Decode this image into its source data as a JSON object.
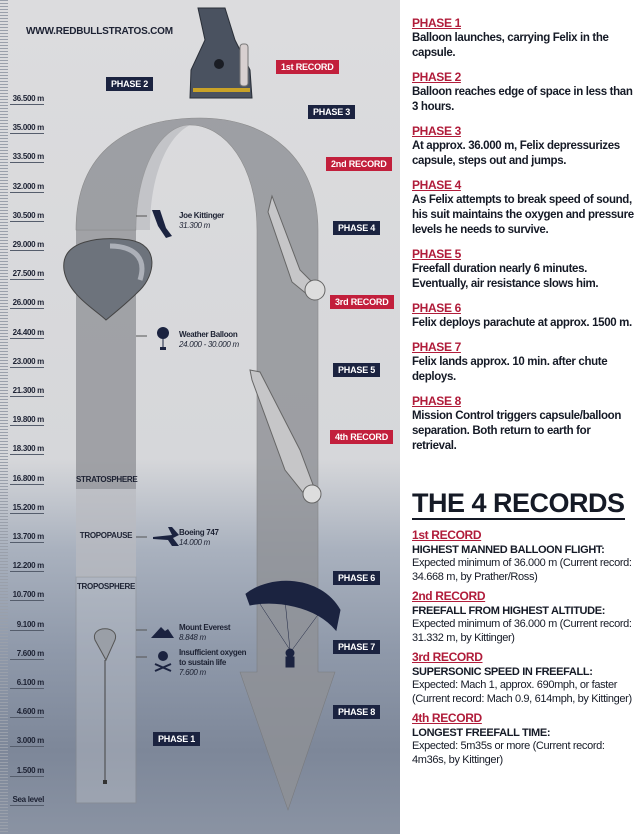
{
  "website": "WWW.REDBULLSTRATOS.COM",
  "altitudes": [
    "36.500 m",
    "35.000 m",
    "33.500 m",
    "32.000 m",
    "30.500 m",
    "29.000 m",
    "27.500 m",
    "26.000 m",
    "24.400 m",
    "23.000 m",
    "21.300 m",
    "19.800 m",
    "18.300 m",
    "16.800 m",
    "15.200 m",
    "13.700 m",
    "12.200 m",
    "10.700 m",
    "9.100 m",
    "7.600 m",
    "6.100 m",
    "4.600 m",
    "3.000 m",
    "1.500 m",
    "Sea level"
  ],
  "zones": {
    "stratosphere": "STRATOSPHERE",
    "tropopause": "TROPOPAUSE",
    "troposphere": "TROPOSPHERE"
  },
  "badges": {
    "phase1": "PHASE 1",
    "phase2": "PHASE 2",
    "phase3": "PHASE 3",
    "phase4": "PHASE 4",
    "phase5": "PHASE 5",
    "phase6": "PHASE 6",
    "phase7": "PHASE 7",
    "phase8": "PHASE 8",
    "rec1": "1st RECORD",
    "rec2": "2nd RECORD",
    "rec3": "3rd RECORD",
    "rec4": "4th RECORD"
  },
  "annotations": [
    {
      "name": "Joe Kittinger",
      "value": "31.300 m"
    },
    {
      "name": "Weather Balloon",
      "value": "24.000 - 30.000 m"
    },
    {
      "name": "Boeing 747",
      "value": "14.000 m"
    },
    {
      "name": "Mount Everest",
      "value": "8.848 m"
    },
    {
      "name": "Insufficient oxygen to sustain life",
      "value": "7.600 m"
    }
  ],
  "phases": [
    {
      "title": "PHASE 1",
      "text": "Balloon launches, carrying Felix in the capsule."
    },
    {
      "title": "PHASE 2",
      "text": "Balloon reaches edge of space in less than 3 hours."
    },
    {
      "title": "PHASE 3",
      "text": "At approx. 36.000 m, Felix depressurizes capsule, steps out and jumps."
    },
    {
      "title": "PHASE 4",
      "text": "As Felix attempts to break speed of sound, his suit maintains the oxygen and pressure levels he needs to survive."
    },
    {
      "title": "PHASE 5",
      "text": "Freefall duration nearly 6 minutes. Eventually, air resistance slows him."
    },
    {
      "title": "PHASE 6",
      "text": "Felix deploys parachute at approx. 1500 m."
    },
    {
      "title": "PHASE 7",
      "text": "Felix lands approx. 10 min. after chute deploys."
    },
    {
      "title": "PHASE 8",
      "text": "Mission Control triggers capsule/balloon separation. Both return to earth for retrieval."
    }
  ],
  "records": {
    "heading": "THE 4 RECORDS",
    "items": [
      {
        "title": "1st RECORD",
        "name": "HIGHEST MANNED BALLOON FLIGHT:",
        "text": "Expected minimum of 36.000 m (Current record: 34.668 m, by Prather/Ross)"
      },
      {
        "title": "2nd RECORD",
        "name": "FREEFALL FROM HIGHEST ALTITUDE:",
        "text": "Expected minimum of 36.000 m (Current record: 31.332 m, by Kittinger)"
      },
      {
        "title": "3rd RECORD",
        "name": "SUPERSONIC SPEED IN FREEFALL:",
        "text": "Expected: Mach 1, approx. 690mph, or faster (Current record: Mach 0.9, 614mph, by Kittinger)"
      },
      {
        "title": "4th RECORD",
        "name": "LONGEST FREEFALL TIME:",
        "text": "Expected: 5m35s or more (Current record: 4m36s, by Kittinger)"
      }
    ]
  },
  "colors": {
    "phase_badge": "#1b2340",
    "record_badge": "#c21f3c",
    "heading_red": "#b01c3a"
  }
}
